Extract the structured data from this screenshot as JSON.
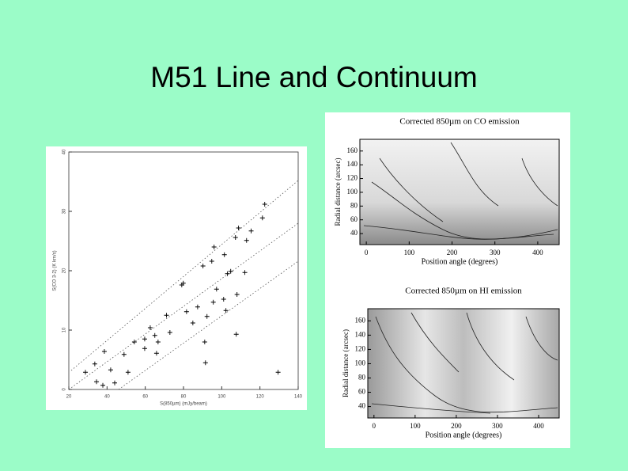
{
  "title": "M51 Line and Continuum",
  "chart_data": [
    {
      "type": "scatter",
      "x_label": "S(850µm) (mJy/beam)",
      "y_label": "S(CO 3-2) (K km/s)",
      "color": "#000000",
      "x": [
        122.5,
        121.3,
        108.8,
        115.4,
        107.2,
        113,
        96,
        101.4,
        94.8,
        104.7,
        103,
        112.1,
        90.2,
        79.9,
        97.3,
        108,
        95.6,
        101,
        87.4,
        102.2,
        81.6,
        71.1,
        92.3,
        84.9,
        62.6,
        65,
        72.9,
        91.1,
        107.6,
        59.7,
        54.3,
        59.7,
        65.9,
        48.9,
        91.5,
        38.6,
        33.6,
        41.9,
        28.7,
        51,
        34.5,
        37.8,
        44,
        129.5,
        79.1,
        66.7
      ],
      "values": [
        31.2,
        28.9,
        27.2,
        26.7,
        25.6,
        25.1,
        24,
        22.7,
        21.6,
        19.9,
        19.5,
        19.7,
        20.8,
        17.9,
        16.9,
        16,
        14.7,
        15.2,
        13.9,
        13.3,
        13.1,
        12.5,
        12.3,
        11.2,
        10.4,
        9.1,
        9.6,
        8,
        9.3,
        8.5,
        8,
        6.9,
        6.1,
        5.9,
        4.5,
        6.4,
        4.3,
        3.3,
        2.9,
        2.9,
        1.3,
        0.7,
        1.1,
        2.9,
        17.6,
        8
      ],
      "xlim": [
        20,
        140
      ],
      "ylim": [
        0,
        40
      ],
      "xticks": [
        20,
        40,
        60,
        80,
        100,
        120,
        140
      ],
      "yticks": [
        0,
        10,
        20,
        30,
        40
      ]
    },
    {
      "type": "image",
      "title": "Corrected 850µm on CO emission",
      "x_label": "Position angle (degrees)",
      "y_label": "Radial distance (arcsec)",
      "xlim": [
        -15,
        450
      ],
      "ylim": [
        24,
        177
      ],
      "xticks": [
        0,
        100,
        200,
        300,
        400
      ],
      "yticks": [
        40,
        60,
        80,
        100,
        120,
        140,
        160
      ]
    },
    {
      "type": "image",
      "title": "Corrected 850µm on HI emission",
      "x_label": "Position angle (degrees)",
      "y_label": "Radial distance (arcsec)",
      "xlim": [
        -15,
        450
      ],
      "ylim": [
        24,
        177
      ],
      "xticks": [
        0,
        100,
        200,
        300,
        400
      ],
      "yticks": [
        40,
        60,
        80,
        100,
        120,
        140,
        160
      ]
    }
  ]
}
